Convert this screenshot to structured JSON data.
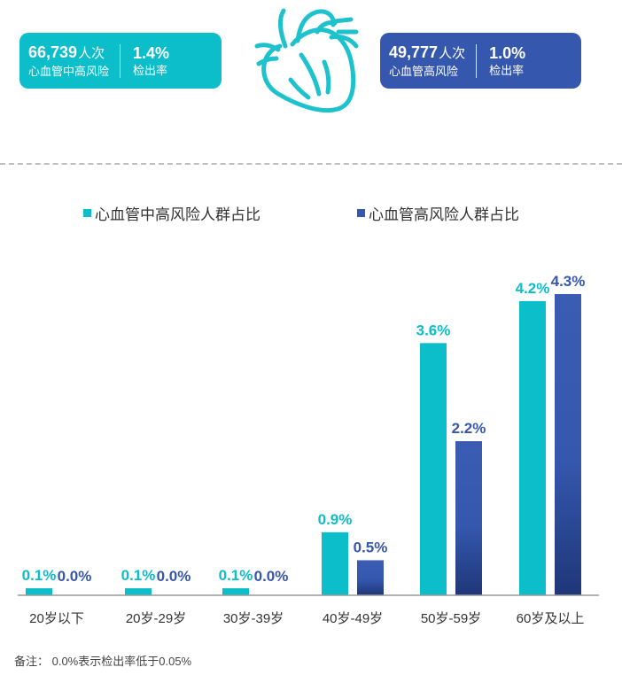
{
  "cards": [
    {
      "value": "66,739",
      "unit": "人次",
      "label": "心血管中高风险",
      "rate": "1.4%",
      "rate_label": "检出率"
    },
    {
      "value": "49,777",
      "unit": "人次",
      "label": "心血管高风险",
      "rate": "1.0%",
      "rate_label": "检出率"
    }
  ],
  "icons": {
    "center": "heart-icon"
  },
  "colors": {
    "teal": "#0bbec9",
    "blue": "#3557ae",
    "blue_dark": "#1f3778"
  },
  "chart_data": {
    "type": "bar",
    "categories": [
      "20岁以下",
      "20岁-29岁",
      "30岁-39岁",
      "40岁-49岁",
      "50岁-59岁",
      "60岁及以上"
    ],
    "series": [
      {
        "name": "心血管中高风险人群占比",
        "values": [
          0.1,
          0.1,
          0.1,
          0.9,
          3.6,
          4.2
        ],
        "labels": [
          "0.1%",
          "0.1%",
          "0.1%",
          "0.9%",
          "3.6%",
          "4.2%"
        ],
        "color": "#0bbec9"
      },
      {
        "name": "心血管高风险人群占比",
        "values": [
          0.0,
          0.0,
          0.0,
          0.5,
          2.2,
          4.3
        ],
        "labels": [
          "0.0%",
          "0.0%",
          "0.0%",
          "0.5%",
          "2.2%",
          "4.3%"
        ],
        "color": "#3557ae"
      }
    ],
    "ylim": [
      0,
      4.3
    ],
    "grid": false,
    "legend_position": "top"
  },
  "footnote": "备注：  0.0%表示检出率低于0.05%"
}
